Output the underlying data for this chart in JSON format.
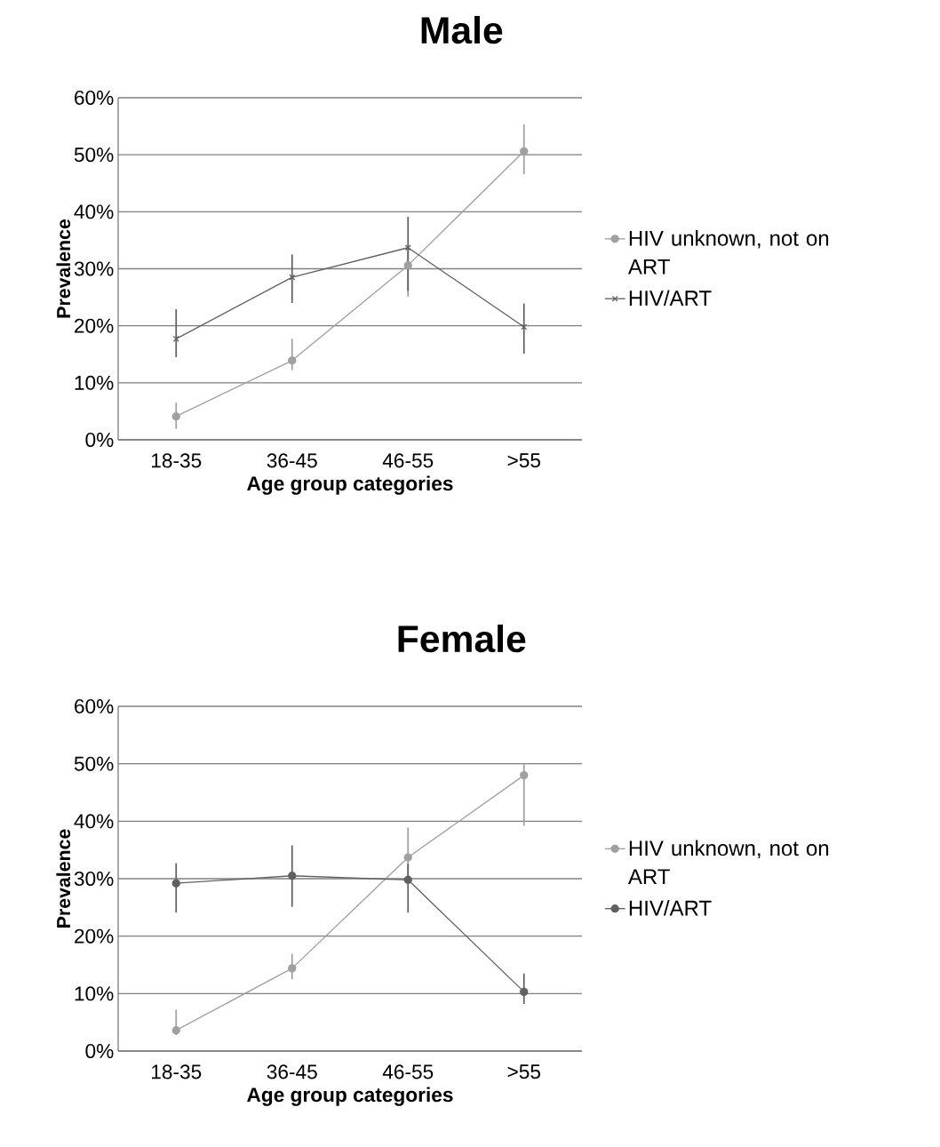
{
  "chart_data": [
    {
      "type": "line",
      "title": "Male",
      "xlabel": "Age group categories",
      "ylabel": "Prevalence",
      "categories": [
        "18-35",
        "36-45",
        "46-55",
        ">55"
      ],
      "series": [
        {
          "name": "HIV unknown, not on ART",
          "color": "#a0a0a0",
          "marker": "circle",
          "values": [
            4.1,
            13.9,
            30.6,
            50.6
          ],
          "errors": [
            [
              1.9,
              6.5
            ],
            [
              12.2,
              17.7
            ],
            [
              25.1,
              33.7
            ],
            [
              46.6,
              55.3
            ]
          ]
        },
        {
          "name": "HIV/ART",
          "color": "#606060",
          "marker": "cross",
          "values": [
            17.7,
            28.5,
            33.7,
            19.8
          ],
          "errors": [
            [
              14.5,
              22.9
            ],
            [
              24.0,
              32.5
            ],
            [
              26.1,
              39.1
            ],
            [
              15.1,
              23.9
            ]
          ]
        }
      ],
      "ylim": [
        0,
        60
      ],
      "yticks": [
        {
          "value": 0,
          "label": "0%"
        },
        {
          "value": 10,
          "label": "10%"
        },
        {
          "value": 20,
          "label": "20%"
        },
        {
          "value": 30,
          "label": "30%"
        },
        {
          "value": 40,
          "label": "40%"
        },
        {
          "value": 50,
          "label": "50%"
        },
        {
          "value": 60,
          "label": "60%"
        }
      ],
      "grid": "y",
      "legend": "right",
      "line_style": "solid"
    },
    {
      "type": "line",
      "title": "Female",
      "xlabel": "Age group categories",
      "ylabel": "Prevalence",
      "categories": [
        "18-35",
        "36-45",
        "46-55",
        ">55"
      ],
      "series": [
        {
          "name": "HIV unknown, not on ART",
          "color": "#a0a0a0",
          "marker": "circle",
          "values": [
            3.6,
            14.4,
            33.7,
            48.0
          ],
          "errors": [
            [
              2.8,
              7.2
            ],
            [
              12.5,
              16.9
            ],
            [
              30.6,
              38.9
            ],
            [
              39.2,
              50.0
            ]
          ]
        },
        {
          "name": "HIV/ART",
          "color": "#606060",
          "marker": "circle",
          "values": [
            29.2,
            30.5,
            29.8,
            10.3
          ],
          "errors": [
            [
              24.1,
              32.7
            ],
            [
              25.1,
              35.8
            ],
            [
              24.1,
              32.6
            ],
            [
              8.2,
              13.5
            ]
          ]
        }
      ],
      "ylim": [
        0,
        60
      ],
      "yticks": [
        {
          "value": 0,
          "label": "0%"
        },
        {
          "value": 10,
          "label": "10%"
        },
        {
          "value": 20,
          "label": "20%"
        },
        {
          "value": 30,
          "label": "30%"
        },
        {
          "value": 40,
          "label": "40%"
        },
        {
          "value": 50,
          "label": "50%"
        },
        {
          "value": 60,
          "label": "60%"
        }
      ],
      "grid": "y",
      "legend": "right",
      "line_style": "solid"
    }
  ]
}
